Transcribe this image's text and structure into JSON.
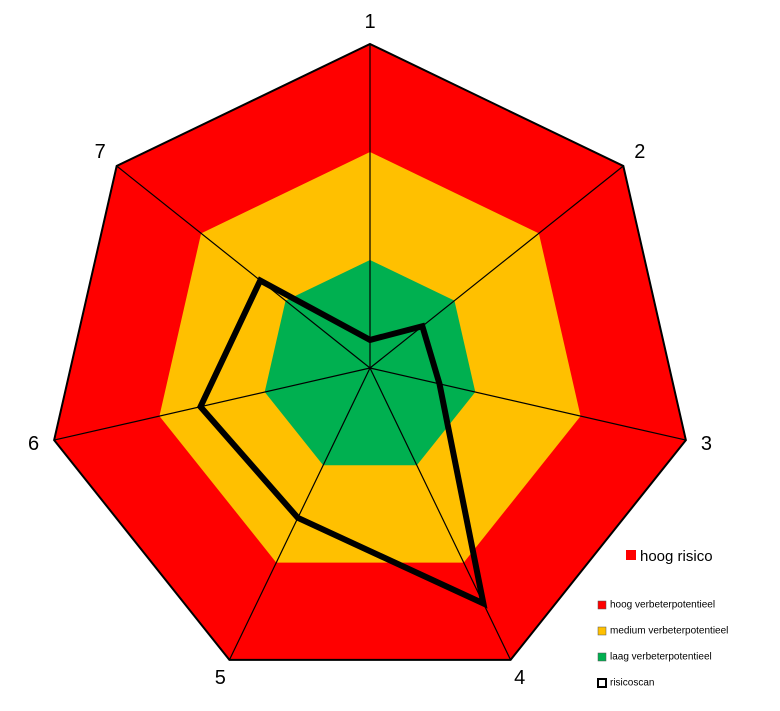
{
  "chart_data": {
    "type": "radar",
    "categories": [
      "1",
      "2",
      "3",
      "4",
      "5",
      "6",
      "7"
    ],
    "ylim": [
      0,
      3
    ],
    "annotation": "hoog risico",
    "annotation_color": "#ff0000",
    "series": [
      {
        "name": "hoog verbeterpotentieel",
        "color": "#ff0000",
        "fill": true,
        "values": [
          3,
          3,
          3,
          3,
          3,
          3,
          3
        ]
      },
      {
        "name": "medium verbeterpotentieel",
        "color": "#ffc000",
        "fill": true,
        "values": [
          2,
          2,
          2,
          2,
          2,
          2,
          2
        ]
      },
      {
        "name": "laag verbeterpotentieel",
        "color": "#00b050",
        "fill": true,
        "values": [
          1,
          1,
          1,
          1,
          1,
          1,
          1
        ]
      },
      {
        "name": "risicoscan",
        "color": "#000000",
        "fill": false,
        "values": [
          0.26,
          0.62,
          0.66,
          2.42,
          1.54,
          1.61,
          1.3
        ]
      }
    ]
  }
}
